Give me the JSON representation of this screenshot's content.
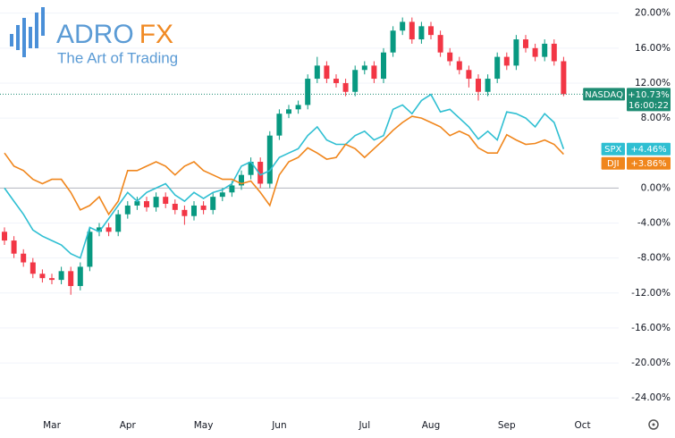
{
  "logo": {
    "brand": "ADRO",
    "brand_accent": "FX",
    "tagline": "The Art of Trading"
  },
  "chart_data": {
    "type": "candlestick",
    "categories": [
      null,
      null,
      null,
      null,
      null,
      "Mar",
      null,
      null,
      null,
      null,
      null,
      null,
      null,
      "Apr",
      null,
      null,
      null,
      null,
      null,
      null,
      null,
      "May",
      null,
      null,
      null,
      null,
      null,
      null,
      null,
      "Jun",
      null,
      null,
      null,
      null,
      null,
      null,
      null,
      null,
      "Jul",
      null,
      null,
      null,
      null,
      null,
      null,
      "Aug",
      null,
      null,
      null,
      null,
      null,
      null,
      null,
      "Sep",
      null,
      null,
      null,
      null,
      null,
      null,
      null,
      "Oct"
    ],
    "ylim": [
      -25,
      21.5
    ],
    "yticks": [
      {
        "value": 20,
        "label": "20.00%"
      },
      {
        "value": 16,
        "label": "16.00%"
      },
      {
        "value": 12,
        "label": "12.00%"
      },
      {
        "value": 8,
        "label": "8.00%"
      },
      {
        "value": 0,
        "label": "0.00%"
      },
      {
        "value": -4,
        "label": "-4.00%"
      },
      {
        "value": -8,
        "label": "-8.00%"
      },
      {
        "value": -12,
        "label": "-12.00%"
      },
      {
        "value": -16,
        "label": "-16.00%"
      },
      {
        "value": -20,
        "label": "-20.00%"
      },
      {
        "value": -24,
        "label": "-24.00%"
      }
    ],
    "grid": true,
    "series": [
      {
        "name": "NASDAQ",
        "type": "candlestick",
        "color": "#1e8c73",
        "up_color": "#089981",
        "down_color": "#f23645",
        "last_label": "+10.73%",
        "countdown": "16:00:22",
        "open": [
          -5.0,
          -6.0,
          -7.5,
          -8.5,
          -9.8,
          -10.3,
          -10.5,
          -9.5,
          -11.2,
          -9.0,
          -5.0,
          -4.5,
          -5.0,
          -3.0,
          -2.0,
          -1.5,
          -2.2,
          -1.0,
          -1.8,
          -2.5,
          -3.2,
          -2.0,
          -2.5,
          -1.0,
          -0.5,
          0.3,
          1.5,
          3.0,
          0.5,
          6.0,
          8.5,
          9.0,
          9.5,
          12.5,
          14.0,
          12.5,
          12.0,
          11.0,
          13.5,
          14.0,
          12.5,
          15.5,
          18.0,
          19.0,
          17.0,
          18.5,
          17.5,
          15.5,
          14.5,
          13.5,
          12.5,
          11.0,
          12.5,
          15.0,
          14.0,
          17.0,
          16.0,
          15.0,
          16.5,
          14.5,
          null,
          null
        ],
        "high": [
          -4.5,
          -5.5,
          -7.0,
          -8.0,
          -9.3,
          -9.8,
          -9.0,
          -9.0,
          -8.5,
          -4.5,
          -4.0,
          -4.0,
          -2.5,
          -1.5,
          -1.0,
          -1.0,
          -0.5,
          -0.5,
          -1.3,
          -2.0,
          -1.5,
          -1.5,
          -0.5,
          0.0,
          0.8,
          2.0,
          3.5,
          3.5,
          6.5,
          9.0,
          9.5,
          10.0,
          13.0,
          15.0,
          14.5,
          13.0,
          12.5,
          14.0,
          14.5,
          14.5,
          16.0,
          18.5,
          19.5,
          19.5,
          19.0,
          19.0,
          18.0,
          16.0,
          15.0,
          14.0,
          13.0,
          13.0,
          15.5,
          15.5,
          17.5,
          17.5,
          16.5,
          17.0,
          17.0,
          15.0,
          null,
          null
        ],
        "low": [
          -6.5,
          -8.0,
          -9.0,
          -10.3,
          -10.8,
          -11.0,
          -11.0,
          -12.2,
          -11.7,
          -9.5,
          -5.5,
          -5.5,
          -5.5,
          -3.5,
          -2.5,
          -2.7,
          -2.7,
          -2.3,
          -3.0,
          -4.2,
          -3.7,
          -3.0,
          -3.0,
          -1.5,
          -1.0,
          -0.2,
          1.0,
          0.0,
          0.0,
          5.5,
          8.0,
          8.5,
          9.0,
          12.0,
          12.0,
          11.5,
          10.5,
          10.5,
          13.0,
          12.0,
          12.0,
          15.0,
          17.5,
          16.5,
          16.5,
          17.0,
          15.0,
          14.0,
          13.0,
          11.5,
          10.0,
          10.5,
          12.0,
          13.5,
          13.5,
          15.5,
          14.5,
          14.5,
          14.0,
          10.5,
          null,
          null
        ],
        "close": [
          -6.0,
          -7.5,
          -8.5,
          -9.8,
          -10.3,
          -10.5,
          -9.5,
          -11.2,
          -9.0,
          -5.0,
          -4.5,
          -5.0,
          -3.0,
          -2.0,
          -1.5,
          -2.2,
          -1.0,
          -1.8,
          -2.5,
          -3.2,
          -2.0,
          -2.5,
          -1.0,
          -0.5,
          0.3,
          1.5,
          3.0,
          0.5,
          6.0,
          8.5,
          9.0,
          9.5,
          12.5,
          14.0,
          12.5,
          12.0,
          11.0,
          13.5,
          14.0,
          12.5,
          15.5,
          18.0,
          19.0,
          17.0,
          18.5,
          17.5,
          15.5,
          14.5,
          13.5,
          12.5,
          11.0,
          12.5,
          15.0,
          14.0,
          17.0,
          16.0,
          15.0,
          16.5,
          14.5,
          10.73,
          null,
          null
        ]
      },
      {
        "name": "SPX",
        "type": "line",
        "color": "#2fbfd2",
        "last_label": "+4.46%",
        "values": [
          0.0,
          -1.5,
          -3.0,
          -4.8,
          -5.5,
          -6.0,
          -6.5,
          -7.5,
          -8.0,
          -4.5,
          -5.0,
          -3.5,
          -2.0,
          -0.5,
          -1.5,
          -0.5,
          0.0,
          0.5,
          -0.8,
          -1.5,
          -0.5,
          -1.2,
          -0.5,
          -0.2,
          0.5,
          2.5,
          3.0,
          1.5,
          2.0,
          3.5,
          4.0,
          4.5,
          6.0,
          7.0,
          5.5,
          5.0,
          5.0,
          6.0,
          6.5,
          5.5,
          6.0,
          9.0,
          9.5,
          8.5,
          10.0,
          10.7,
          8.7,
          9.0,
          8.0,
          7.0,
          5.6,
          6.5,
          5.5,
          8.7,
          8.5,
          8.0,
          7.0,
          8.5,
          7.5,
          4.46,
          null,
          null
        ]
      },
      {
        "name": "DJI",
        "type": "line",
        "color": "#f0861c",
        "last_label": "+3.86%",
        "values": [
          4.0,
          2.5,
          2.0,
          1.0,
          0.5,
          1.0,
          1.0,
          -0.5,
          -2.5,
          -2.0,
          -1.0,
          -3.0,
          -1.5,
          2.0,
          2.0,
          2.5,
          3.0,
          2.5,
          1.5,
          2.5,
          3.0,
          2.0,
          1.5,
          1.0,
          1.0,
          0.5,
          0.8,
          -0.5,
          -2.0,
          1.5,
          3.0,
          3.5,
          4.6,
          4.0,
          3.3,
          3.5,
          5.0,
          4.5,
          3.5,
          4.5,
          5.5,
          6.6,
          7.5,
          8.2,
          8.0,
          7.5,
          7.0,
          6.0,
          6.5,
          6.0,
          4.6,
          4.0,
          4.0,
          6.1,
          5.5,
          5.0,
          5.1,
          5.5,
          5.0,
          3.86,
          null,
          null
        ]
      }
    ]
  }
}
